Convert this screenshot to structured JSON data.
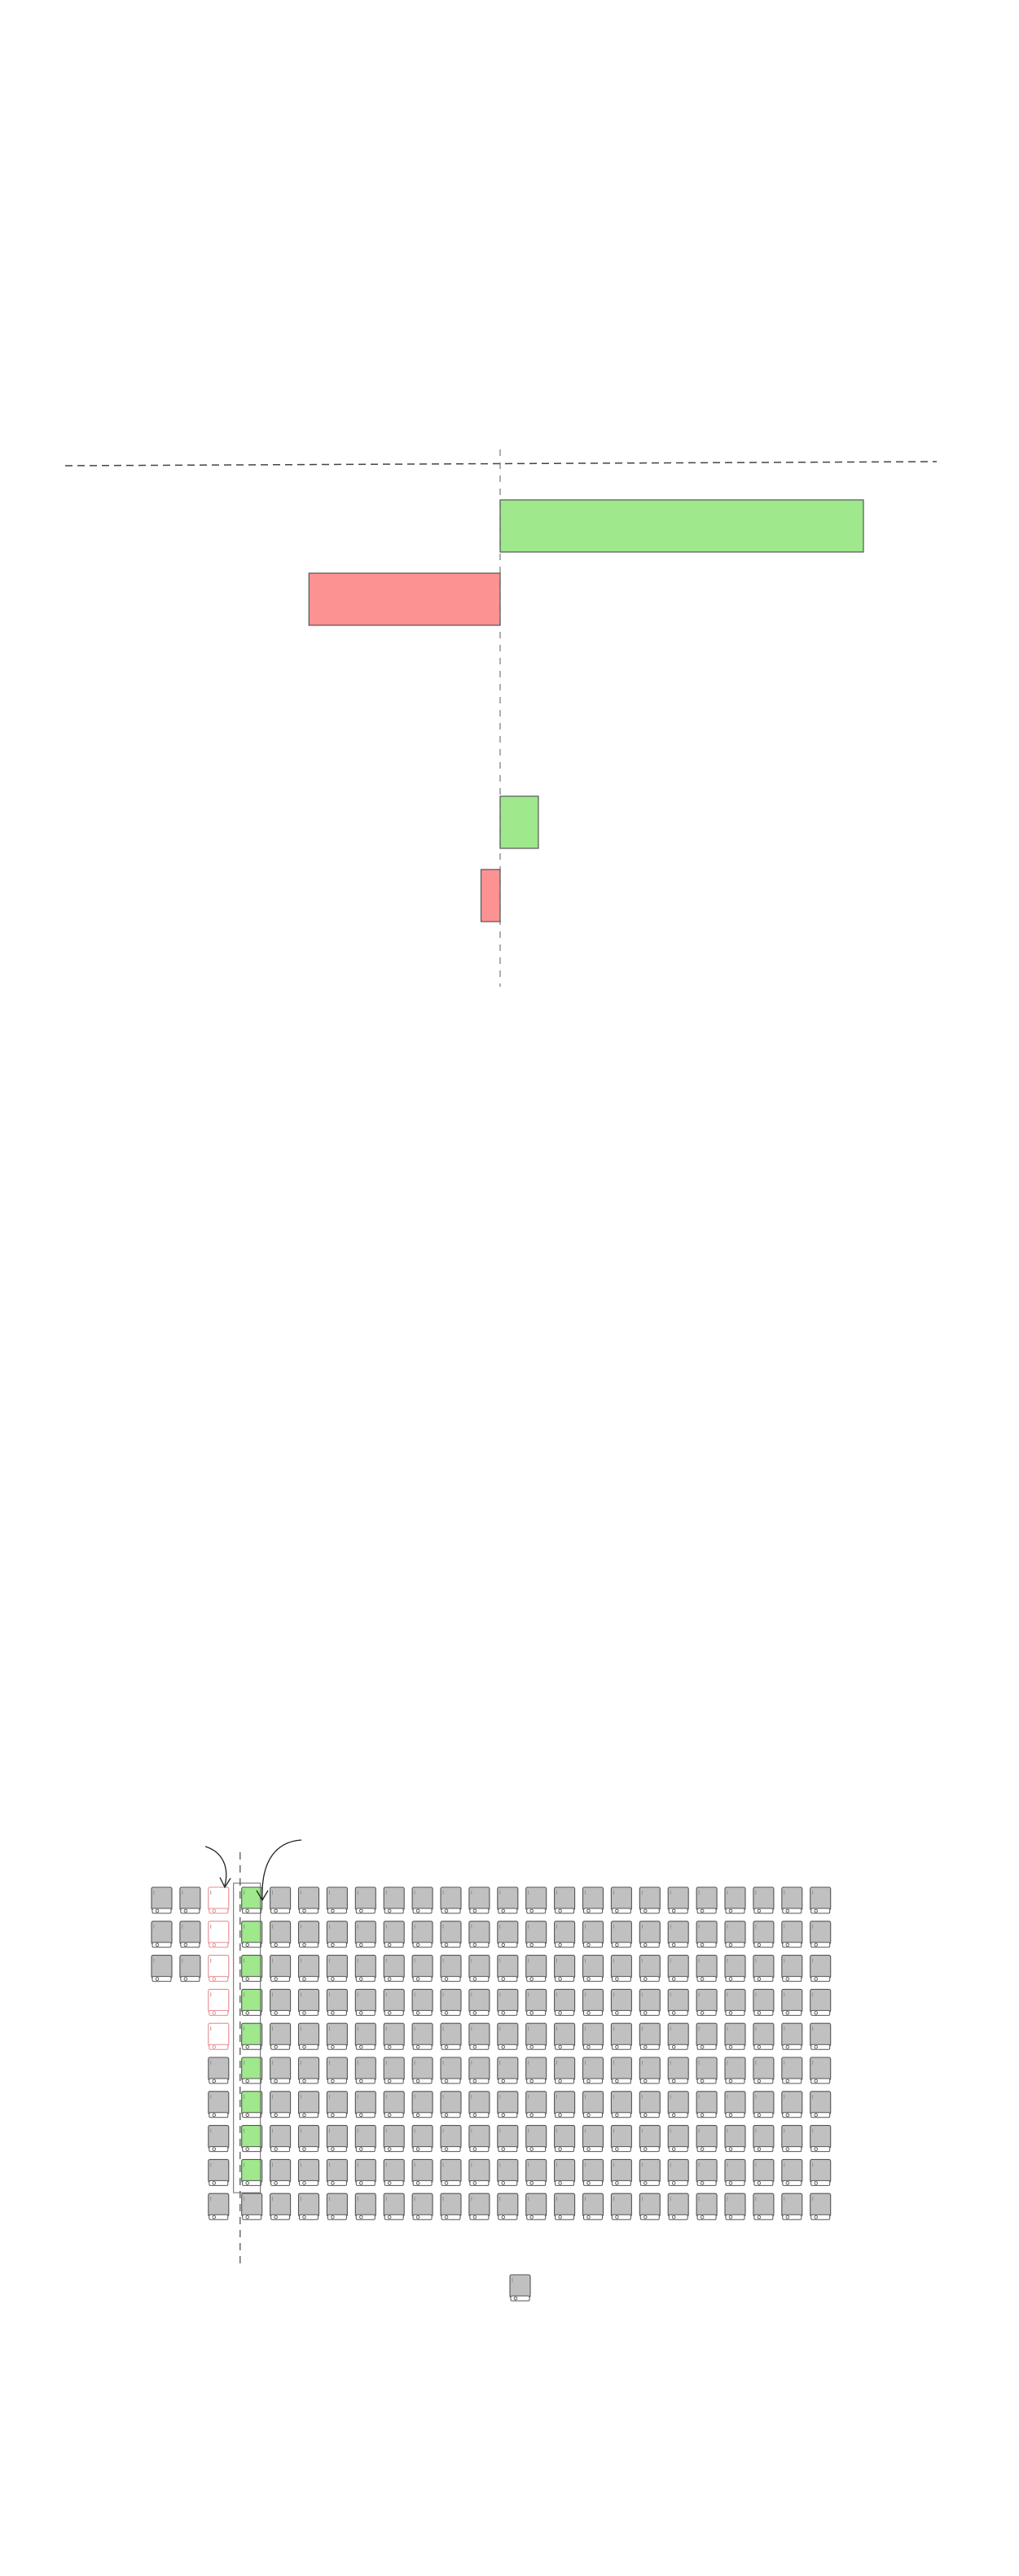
{
  "colors": {
    "gain": "#9fe88c",
    "loss": "#fd9293",
    "icon_fill": "#c0c0c0",
    "stroke": "#555555",
    "background": "#ffffff"
  },
  "chart_data": [
    {
      "type": "bar",
      "orientation": "horizontal",
      "title": "",
      "xlabel": "",
      "ylabel": "",
      "zero_line": true,
      "baseline_dashed": true,
      "series": [
        {
          "group": 1,
          "kind": "gain",
          "value": 19
        },
        {
          "group": 1,
          "kind": "loss",
          "value": -10
        },
        {
          "group": 2,
          "kind": "gain",
          "value": 2
        },
        {
          "group": 2,
          "kind": "loss",
          "value": -1
        }
      ]
    },
    {
      "type": "waffle",
      "title": "",
      "icon": "device-icon",
      "columns": 24,
      "rows": 10,
      "legend": false,
      "column_counts": [
        3,
        3,
        10,
        10,
        10,
        10,
        10,
        10,
        10,
        10,
        10,
        10,
        10,
        10,
        10,
        10,
        10,
        10,
        10,
        10,
        10,
        10,
        10,
        10
      ],
      "column_start_rows": [
        0,
        0,
        0,
        0,
        0,
        0,
        0,
        0,
        0,
        0,
        0,
        0,
        0,
        0,
        0,
        0,
        0,
        0,
        0,
        0,
        0,
        0,
        0,
        0
      ],
      "lost_column": 2,
      "lost_count": 5,
      "gained_column": 3,
      "gained_count": 9,
      "removed_marker_column": 4,
      "extra_icon_count": 1
    }
  ]
}
